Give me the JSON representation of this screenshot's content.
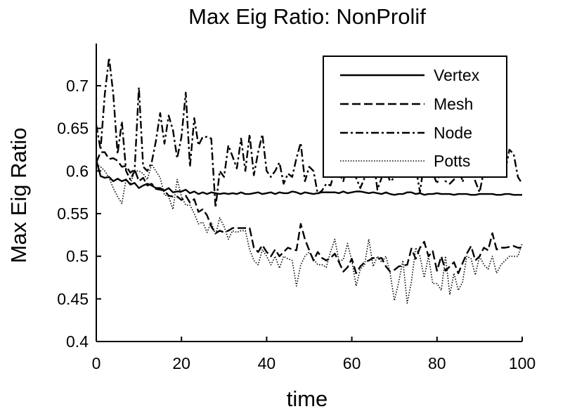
{
  "chart_data": {
    "type": "line",
    "title": "Max Eig Ratio: NonProlif",
    "xlabel": "time",
    "ylabel": "Max Eig Ratio",
    "xlim": [
      0,
      100
    ],
    "ylim": [
      0.4,
      0.75
    ],
    "xticks": [
      0,
      20,
      40,
      60,
      80,
      100
    ],
    "xtick_labels": [
      "0",
      "20",
      "40",
      "60",
      "80",
      "100"
    ],
    "yticks": [
      0.4,
      0.45,
      0.5,
      0.55,
      0.6,
      0.65,
      0.7
    ],
    "ytick_labels": [
      "0.4",
      "0.45",
      "0.5",
      "0.55",
      "0.6",
      "0.65",
      "0.7"
    ],
    "grid": false,
    "legend_position": "top-right",
    "series": [
      {
        "name": "Vertex",
        "style": "solid",
        "color": "#000000",
        "x": [
          0,
          1,
          2,
          3,
          4,
          5,
          6,
          7,
          8,
          9,
          10,
          11,
          12,
          13,
          14,
          15,
          16,
          17,
          18,
          19,
          20,
          21,
          22,
          23,
          24,
          25,
          26,
          27,
          28,
          29,
          30,
          31,
          32,
          33,
          34,
          35,
          36,
          37,
          38,
          39,
          40,
          41,
          42,
          43,
          44,
          45,
          46,
          47,
          48,
          49,
          50,
          51,
          52,
          53,
          54,
          55,
          56,
          57,
          58,
          59,
          60,
          61,
          62,
          63,
          64,
          65,
          66,
          67,
          68,
          69,
          70,
          71,
          72,
          73,
          74,
          75,
          76,
          77,
          78,
          79,
          80,
          81,
          82,
          83,
          84,
          85,
          86,
          87,
          88,
          89,
          90,
          91,
          92,
          93,
          94,
          95,
          96,
          97,
          98,
          99,
          100
        ],
        "y": [
          0.613,
          0.594,
          0.592,
          0.593,
          0.588,
          0.591,
          0.588,
          0.59,
          0.584,
          0.586,
          0.58,
          0.583,
          0.585,
          0.583,
          0.58,
          0.58,
          0.577,
          0.58,
          0.575,
          0.576,
          0.576,
          0.578,
          0.574,
          0.576,
          0.573,
          0.575,
          0.573,
          0.575,
          0.574,
          0.573,
          0.574,
          0.573,
          0.574,
          0.573,
          0.575,
          0.573,
          0.573,
          0.574,
          0.575,
          0.573,
          0.574,
          0.575,
          0.573,
          0.575,
          0.574,
          0.574,
          0.576,
          0.575,
          0.573,
          0.575,
          0.574,
          0.573,
          0.574,
          0.575,
          0.575,
          0.575,
          0.575,
          0.574,
          0.576,
          0.574,
          0.575,
          0.576,
          0.576,
          0.575,
          0.574,
          0.575,
          0.574,
          0.573,
          0.575,
          0.573,
          0.572,
          0.573,
          0.573,
          0.575,
          0.575,
          0.573,
          0.574,
          0.572,
          0.573,
          0.573,
          0.574,
          0.573,
          0.573,
          0.573,
          0.572,
          0.573,
          0.573,
          0.573,
          0.572,
          0.572,
          0.573,
          0.573,
          0.573,
          0.573,
          0.572,
          0.572,
          0.573,
          0.573,
          0.572,
          0.572,
          0.572
        ]
      },
      {
        "name": "Mesh",
        "style": "dashed",
        "color": "#000000",
        "x": [
          0,
          1,
          2,
          3,
          4,
          5,
          6,
          7,
          8,
          9,
          10,
          11,
          12,
          13,
          14,
          15,
          16,
          17,
          18,
          19,
          20,
          21,
          22,
          23,
          24,
          25,
          26,
          27,
          28,
          29,
          30,
          31,
          32,
          33,
          34,
          35,
          36,
          37,
          38,
          39,
          40,
          41,
          42,
          43,
          44,
          45,
          46,
          47,
          48,
          49,
          50,
          51,
          52,
          53,
          54,
          55,
          56,
          57,
          58,
          59,
          60,
          61,
          62,
          63,
          64,
          65,
          66,
          67,
          68,
          69,
          70,
          71,
          72,
          73,
          74,
          75,
          76,
          77,
          78,
          79,
          80,
          81,
          82,
          83,
          84,
          85,
          86,
          87,
          88,
          89,
          90,
          91,
          92,
          93,
          94,
          95,
          96,
          97,
          98,
          99,
          100
        ],
        "y": [
          0.61,
          0.622,
          0.622,
          0.614,
          0.615,
          0.612,
          0.605,
          0.606,
          0.598,
          0.602,
          0.588,
          0.592,
          0.583,
          0.585,
          0.579,
          0.578,
          0.577,
          0.571,
          0.57,
          0.57,
          0.566,
          0.571,
          0.563,
          0.567,
          0.552,
          0.555,
          0.548,
          0.535,
          0.527,
          0.53,
          0.528,
          0.53,
          0.533,
          0.533,
          0.533,
          0.533,
          0.533,
          0.51,
          0.505,
          0.513,
          0.505,
          0.5,
          0.508,
          0.5,
          0.505,
          0.51,
          0.508,
          0.507,
          0.538,
          0.52,
          0.507,
          0.495,
          0.505,
          0.498,
          0.495,
          0.498,
          0.503,
          0.493,
          0.482,
          0.487,
          0.497,
          0.48,
          0.488,
          0.493,
          0.495,
          0.498,
          0.497,
          0.498,
          0.488,
          0.482,
          0.484,
          0.488,
          0.489,
          0.49,
          0.509,
          0.497,
          0.51,
          0.517,
          0.5,
          0.506,
          0.483,
          0.5,
          0.483,
          0.488,
          0.493,
          0.48,
          0.492,
          0.503,
          0.512,
          0.495,
          0.5,
          0.51,
          0.507,
          0.527,
          0.508,
          0.51,
          0.51,
          0.511,
          0.512,
          0.51,
          0.51
        ]
      },
      {
        "name": "Node",
        "style": "dashdot",
        "color": "#000000",
        "x": [
          0,
          1,
          2,
          3,
          4,
          5,
          6,
          7,
          8,
          9,
          10,
          11,
          12,
          13,
          14,
          15,
          16,
          17,
          18,
          19,
          20,
          21,
          22,
          23,
          24,
          25,
          26,
          27,
          28,
          29,
          30,
          31,
          32,
          33,
          34,
          35,
          36,
          37,
          38,
          39,
          40,
          41,
          42,
          43,
          44,
          45,
          46,
          47,
          48,
          49,
          50,
          51,
          52,
          53,
          54,
          55,
          56,
          57,
          58,
          59,
          60,
          61,
          62,
          63,
          64,
          65,
          66,
          67,
          68,
          69,
          70,
          71,
          72,
          73,
          74,
          75,
          76,
          77,
          78,
          79,
          80,
          81,
          82,
          83,
          84,
          85,
          86,
          87,
          88,
          89,
          90,
          91,
          92,
          93,
          94,
          95,
          96,
          97,
          98,
          99,
          100
        ],
        "y": [
          0.654,
          0.625,
          0.69,
          0.733,
          0.69,
          0.62,
          0.658,
          0.6,
          0.59,
          0.6,
          0.698,
          0.605,
          0.6,
          0.61,
          0.635,
          0.668,
          0.632,
          0.665,
          0.648,
          0.615,
          0.64,
          0.692,
          0.605,
          0.662,
          0.63,
          0.64,
          0.64,
          0.638,
          0.557,
          0.6,
          0.593,
          0.63,
          0.617,
          0.603,
          0.638,
          0.6,
          0.643,
          0.595,
          0.622,
          0.643,
          0.6,
          0.593,
          0.6,
          0.61,
          0.585,
          0.597,
          0.593,
          0.615,
          0.633,
          0.588,
          0.605,
          0.6,
          0.573,
          0.577,
          0.585,
          0.583,
          0.6,
          0.597,
          0.588,
          0.61,
          0.6,
          0.592,
          0.58,
          0.592,
          0.6,
          0.617,
          0.578,
          0.592,
          0.6,
          0.588,
          0.592,
          0.61,
          0.598,
          0.597,
          0.6,
          0.605,
          0.575,
          0.612,
          0.593,
          0.598,
          0.585,
          0.605,
          0.588,
          0.585,
          0.59,
          0.608,
          0.587,
          0.608,
          0.6,
          0.588,
          0.575,
          0.6,
          0.612,
          0.61,
          0.627,
          0.61,
          0.6,
          0.625,
          0.62,
          0.593,
          0.585
        ]
      },
      {
        "name": "Potts",
        "style": "dotted",
        "color": "#000000",
        "x": [
          0,
          1,
          2,
          3,
          4,
          5,
          6,
          7,
          8,
          9,
          10,
          11,
          12,
          13,
          14,
          15,
          16,
          17,
          18,
          19,
          20,
          21,
          22,
          23,
          24,
          25,
          26,
          27,
          28,
          29,
          30,
          31,
          32,
          33,
          34,
          35,
          36,
          37,
          38,
          39,
          40,
          41,
          42,
          43,
          44,
          45,
          46,
          47,
          48,
          49,
          50,
          51,
          52,
          53,
          54,
          55,
          56,
          57,
          58,
          59,
          60,
          61,
          62,
          63,
          64,
          65,
          66,
          67,
          68,
          69,
          70,
          71,
          72,
          73,
          74,
          75,
          76,
          77,
          78,
          79,
          80,
          81,
          82,
          83,
          84,
          85,
          86,
          87,
          88,
          89,
          90,
          91,
          92,
          93,
          94,
          95,
          96,
          97,
          98,
          99,
          100
        ],
        "y": [
          0.608,
          0.605,
          0.6,
          0.592,
          0.58,
          0.57,
          0.562,
          0.59,
          0.585,
          0.6,
          0.6,
          0.597,
          0.59,
          0.608,
          0.6,
          0.592,
          0.572,
          0.57,
          0.555,
          0.59,
          0.57,
          0.56,
          0.56,
          0.55,
          0.538,
          0.54,
          0.528,
          0.54,
          0.525,
          0.545,
          0.535,
          0.52,
          0.53,
          0.528,
          0.53,
          0.53,
          0.508,
          0.495,
          0.49,
          0.508,
          0.5,
          0.49,
          0.5,
          0.486,
          0.5,
          0.497,
          0.495,
          0.465,
          0.49,
          0.5,
          0.505,
          0.497,
          0.49,
          0.49,
          0.487,
          0.505,
          0.52,
          0.494,
          0.496,
          0.515,
          0.495,
          0.465,
          0.485,
          0.49,
          0.52,
          0.488,
          0.5,
          0.493,
          0.5,
          0.48,
          0.448,
          0.47,
          0.495,
          0.445,
          0.47,
          0.51,
          0.5,
          0.475,
          0.5,
          0.468,
          0.468,
          0.46,
          0.5,
          0.455,
          0.48,
          0.46,
          0.47,
          0.5,
          0.497,
          0.478,
          0.5,
          0.49,
          0.485,
          0.5,
          0.48,
          0.49,
          0.495,
          0.5,
          0.5,
          0.5,
          0.515
        ]
      }
    ]
  }
}
